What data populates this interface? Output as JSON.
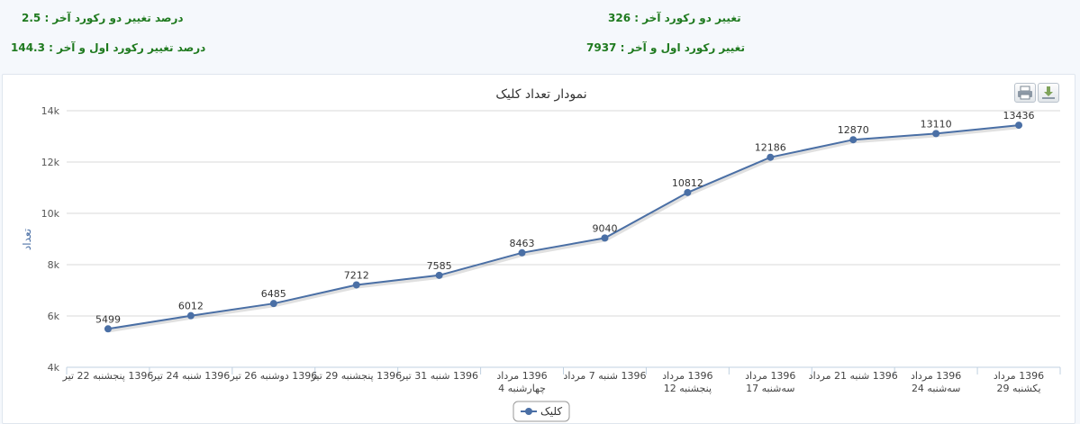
{
  "stats": {
    "change_last_two": {
      "label": "تغییر دو رکورد آخر : ",
      "value": "326"
    },
    "percent_change_last_two": {
      "label": "درصد تغییر دو رکورد آخر : ",
      "value": "2.5"
    },
    "change_first_last": {
      "label": "تغییر رکورد اول و آخر : ",
      "value": "7937"
    },
    "percent_change_first_last": {
      "label": "درصد تغییر رکورد اول و آخر : ",
      "value": "144.3"
    }
  },
  "toolbar": {
    "print_icon": "print-icon",
    "download_icon": "download-icon"
  },
  "chart_data": {
    "type": "line",
    "title": "نمودار تعداد کلیک",
    "ylabel": "تعداد",
    "xlabel": "",
    "ylim": [
      4000,
      14000
    ],
    "yticks": [
      "4k",
      "6k",
      "8k",
      "10k",
      "12k",
      "14k"
    ],
    "categories": [
      [
        "1396 پنجشنبه 22 تیر"
      ],
      [
        "1396 شنبه 24 تیر"
      ],
      [
        "1396 دوشنبه 26 تیر"
      ],
      [
        "1396 پنجشنبه 29 تیر"
      ],
      [
        "1396 شنبه 31 تیر"
      ],
      [
        "1396 مرداد",
        "چهارشنبه 4"
      ],
      [
        "1396 شنبه 7 مرداد"
      ],
      [
        "1396 مرداد",
        "پنجشنبه 12"
      ],
      [
        "1396 مرداد",
        "سه‌شنبه 17"
      ],
      [
        "1396 شنبه 21 مرداد"
      ],
      [
        "1396 مرداد",
        "سه‌شنبه 24"
      ],
      [
        "1396 مرداد",
        "یکشنبه 29"
      ]
    ],
    "series": [
      {
        "name": "کلیک",
        "color": "#4a6fa5",
        "values": [
          5499,
          6012,
          6485,
          7212,
          7585,
          8463,
          9040,
          10812,
          12186,
          12870,
          13110,
          13436
        ]
      }
    ],
    "grid": true,
    "legend": "bottom-center"
  }
}
